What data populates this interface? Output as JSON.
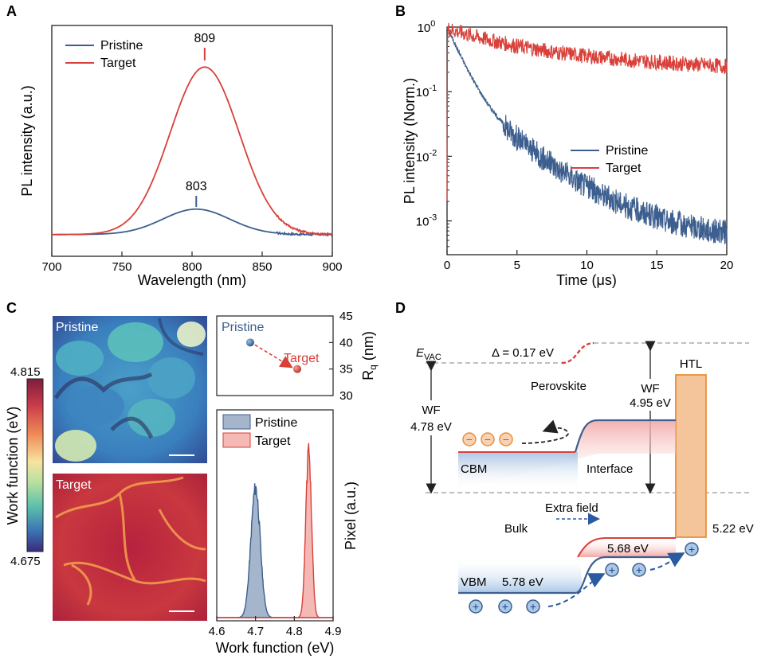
{
  "panels": {
    "a": "A",
    "b": "B",
    "c": "C",
    "d": "D"
  },
  "colors": {
    "pristine": "#3d5f8f",
    "target": "#d9403a",
    "htl_fill": "#f4c49a",
    "htl_stroke": "#e8903a"
  },
  "chart_data": [
    {
      "panel": "A",
      "type": "line",
      "title": "",
      "xlabel": "Wavelength (nm)",
      "ylabel": "PL intensity (a.u.)",
      "xlim": [
        700,
        900
      ],
      "xticks": [
        700,
        750,
        800,
        850,
        900
      ],
      "ylim": [
        0,
        1.1
      ],
      "legend": "top-left",
      "series": [
        {
          "name": "Pristine",
          "color": "#3d5f8f",
          "peak_x": 803,
          "peak_y": 0.15,
          "fwhm": 56,
          "x": [
            700,
            720,
            740,
            760,
            780,
            790,
            800,
            803,
            810,
            820,
            840,
            860,
            880,
            900
          ],
          "y": [
            0.005,
            0.007,
            0.014,
            0.036,
            0.085,
            0.12,
            0.148,
            0.15,
            0.146,
            0.125,
            0.066,
            0.026,
            0.009,
            0.004
          ]
        },
        {
          "name": "Target",
          "color": "#d9403a",
          "peak_x": 809,
          "peak_y": 1.0,
          "fwhm": 58,
          "x": [
            700,
            720,
            740,
            760,
            780,
            790,
            800,
            809,
            820,
            830,
            840,
            860,
            880,
            900
          ],
          "y": [
            0.004,
            0.008,
            0.035,
            0.13,
            0.45,
            0.7,
            0.92,
            1.0,
            0.92,
            0.72,
            0.48,
            0.16,
            0.04,
            0.01
          ]
        }
      ],
      "annotations": [
        {
          "text": "809",
          "x": 809
        },
        {
          "text": "803",
          "x": 803
        }
      ]
    },
    {
      "panel": "B",
      "type": "line",
      "title": "",
      "xlabel": "Time (μs)",
      "ylabel": "PL intensity (Norm.)",
      "xlim": [
        0,
        20
      ],
      "xticks": [
        0,
        5,
        10,
        15,
        20
      ],
      "ylim": [
        0.0003,
        1
      ],
      "yscale": "log",
      "yticks": [
        {
          "base": "10",
          "exp": "0",
          "v": 1
        },
        {
          "base": "10",
          "exp": "-1",
          "v": 0.1
        },
        {
          "base": "10",
          "exp": "-2",
          "v": 0.01
        },
        {
          "base": "10",
          "exp": "-3",
          "v": 0.001
        }
      ],
      "legend": "center-right",
      "series": [
        {
          "name": "Pristine",
          "color": "#3d5f8f",
          "x": [
            0,
            1,
            2,
            3,
            4,
            5,
            6,
            8,
            10,
            12,
            15,
            20
          ],
          "y": [
            1.0,
            0.3,
            0.09,
            0.03,
            0.013,
            0.007,
            0.004,
            0.0018,
            0.001,
            0.0007,
            0.00055,
            0.0005
          ]
        },
        {
          "name": "Target",
          "color": "#d9403a",
          "x": [
            0,
            2,
            4,
            6,
            8,
            10,
            12,
            15,
            18,
            20
          ],
          "y": [
            0.95,
            0.65,
            0.45,
            0.33,
            0.26,
            0.22,
            0.19,
            0.16,
            0.14,
            0.13
          ]
        }
      ]
    },
    {
      "panel": "C",
      "type": "area",
      "title": "",
      "xlabel": "Work function (eV)",
      "ylabel": "Pixel (a.u.)",
      "xlim": [
        4.6,
        4.9
      ],
      "xticks": [
        "4.6",
        "4.7",
        "4.8",
        "4.9"
      ],
      "legend": "top-left",
      "series": [
        {
          "name": "Pristine",
          "color": "#3d5f8f",
          "center": 4.7,
          "sigma": 0.012,
          "peak": 0.72
        },
        {
          "name": "Target",
          "color": "#d9403a",
          "center": 4.837,
          "sigma": 0.0075,
          "peak": 0.92
        }
      ],
      "maps": [
        {
          "label": "Pristine"
        },
        {
          "label": "Target"
        }
      ],
      "colorbar": {
        "label": "Work function (eV)",
        "max": "4.815",
        "min": "4.675"
      }
    },
    {
      "panel": "C",
      "type": "scatter",
      "title": "",
      "ylabel_base": "R",
      "ylabel_sub": "q",
      "ylabel_unit": " (nm)",
      "ylim": [
        30,
        45
      ],
      "yticks": [
        30,
        35,
        40,
        45
      ],
      "points": [
        {
          "label": "Pristine",
          "x": 0,
          "y": 40,
          "color": "#3d5f8f"
        },
        {
          "label": "Target",
          "x": 1,
          "y": 35,
          "color": "#d9403a"
        }
      ]
    }
  ],
  "diagram_d": {
    "evac_base": "E",
    "evac_sub": "VAC",
    "delta": "Δ = 0.17 eV",
    "perovskite": "Perovskite",
    "htl": "HTL",
    "wf_left": [
      "WF",
      "4.78 eV"
    ],
    "wf_right": [
      "WF",
      "4.95 eV"
    ],
    "cbm": "CBM",
    "vbm": "VBM",
    "interface": "Interface",
    "extra_field": "Extra field",
    "bulk": "Bulk",
    "e_568": "5.68 eV",
    "e_578": "5.78 eV",
    "e_522": "5.22 eV",
    "minus": "−",
    "plus": "+"
  }
}
